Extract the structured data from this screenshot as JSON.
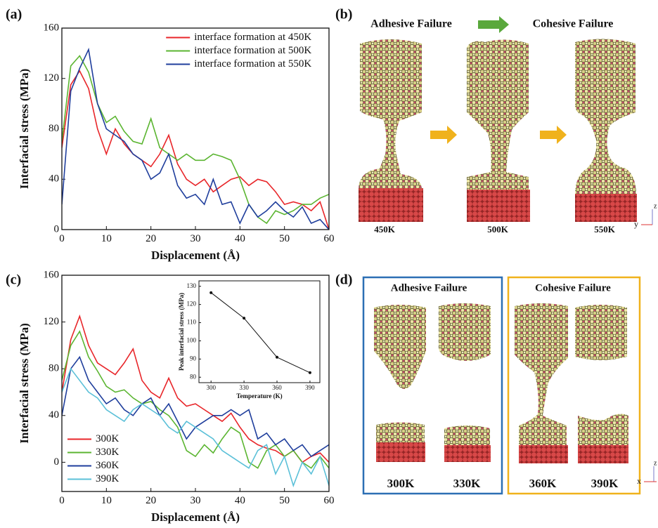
{
  "chart_data": [
    {
      "type": "line",
      "label": "(a)",
      "xlabel": "Displacement (Å)",
      "ylabel": "Interfacial stress (MPa)",
      "x": [
        0,
        2,
        4,
        6,
        8,
        10,
        12,
        14,
        16,
        18,
        20,
        22,
        24,
        26,
        28,
        30,
        32,
        34,
        36,
        38,
        40,
        42,
        44,
        46,
        48,
        50,
        52,
        54,
        56,
        58,
        60
      ],
      "xlim": [
        0,
        60
      ],
      "xticks": [
        0,
        10,
        20,
        30,
        40,
        50,
        60
      ],
      "ylim": [
        0,
        160
      ],
      "yticks": [
        0,
        40,
        80,
        120,
        160
      ],
      "legend": "upper right",
      "series": [
        {
          "name": "interface formation at 450K",
          "color": "#e8262a",
          "values": [
            65,
            115,
            126,
            112,
            80,
            60,
            80,
            68,
            60,
            55,
            50,
            60,
            75,
            52,
            40,
            35,
            40,
            30,
            35,
            40,
            42,
            35,
            40,
            38,
            30,
            20,
            22,
            20,
            15,
            22,
            0
          ]
        },
        {
          "name": "interface formation at 500K",
          "color": "#5bb531",
          "values": [
            70,
            130,
            138,
            125,
            100,
            85,
            90,
            78,
            70,
            68,
            88,
            65,
            60,
            55,
            60,
            55,
            55,
            60,
            58,
            55,
            40,
            20,
            10,
            5,
            15,
            12,
            15,
            20,
            20,
            25,
            28
          ]
        },
        {
          "name": "interface formation at 550K",
          "color": "#1f3e9c",
          "values": [
            20,
            110,
            128,
            143,
            100,
            80,
            75,
            70,
            60,
            55,
            40,
            45,
            60,
            35,
            25,
            28,
            20,
            40,
            20,
            22,
            5,
            20,
            10,
            15,
            22,
            15,
            10,
            18,
            5,
            8,
            0
          ]
        }
      ]
    },
    {
      "type": "line",
      "label": "(c)",
      "xlabel": "Displacement (Å)",
      "ylabel": "Interfacial stress (MPa)",
      "x": [
        0,
        2,
        4,
        6,
        8,
        10,
        12,
        14,
        16,
        18,
        20,
        22,
        24,
        26,
        28,
        30,
        32,
        34,
        36,
        38,
        40,
        42,
        44,
        46,
        48,
        50,
        52,
        54,
        56,
        58,
        60
      ],
      "xlim": [
        0,
        60
      ],
      "xticks": [
        0,
        10,
        20,
        30,
        40,
        50,
        60
      ],
      "ylim": [
        -25,
        160
      ],
      "yticks": [
        0,
        40,
        80,
        120,
        160
      ],
      "legend": "lower left",
      "series": [
        {
          "name": "300K",
          "color": "#e8262a",
          "values": [
            60,
            105,
            125,
            100,
            85,
            80,
            75,
            85,
            97,
            70,
            60,
            55,
            72,
            55,
            48,
            50,
            45,
            40,
            35,
            42,
            30,
            20,
            15,
            12,
            10,
            5,
            10,
            0,
            5,
            8,
            0
          ]
        },
        {
          "name": "330K",
          "color": "#5bb531",
          "values": [
            70,
            100,
            112,
            90,
            78,
            65,
            60,
            62,
            55,
            50,
            52,
            45,
            40,
            30,
            10,
            5,
            15,
            8,
            20,
            30,
            25,
            0,
            -5,
            10,
            15,
            5,
            10,
            0,
            -5,
            5,
            -5
          ]
        },
        {
          "name": "360K",
          "color": "#1f3e9c",
          "values": [
            40,
            80,
            90,
            70,
            60,
            50,
            55,
            45,
            40,
            50,
            55,
            40,
            50,
            35,
            20,
            30,
            35,
            40,
            40,
            45,
            40,
            45,
            20,
            25,
            15,
            20,
            10,
            15,
            5,
            10,
            15
          ]
        },
        {
          "name": "390K",
          "color": "#5bc0d8",
          "values": [
            60,
            80,
            70,
            60,
            55,
            45,
            40,
            35,
            45,
            50,
            45,
            40,
            30,
            25,
            35,
            30,
            25,
            20,
            10,
            5,
            0,
            -5,
            10,
            15,
            -10,
            5,
            -20,
            0,
            -10,
            5,
            -20
          ]
        }
      ]
    },
    {
      "type": "line",
      "xlabel": "Temperature (K)",
      "ylabel": "Peak interfacial stress (MPa)",
      "markers": true,
      "x": [
        300,
        330,
        360,
        390
      ],
      "xlim": [
        289,
        399
      ],
      "xticks": [
        300,
        330,
        360,
        390
      ],
      "ylim": [
        77,
        133
      ],
      "yticks": [
        80,
        90,
        100,
        110,
        120,
        130
      ],
      "color": "#111111",
      "values": [
        126.5,
        112.5,
        91,
        82.5
      ]
    }
  ],
  "panel_b": {
    "label": "(b)",
    "titles": [
      "Adhesive Failure",
      "Cohesive Failure"
    ],
    "temperatures": [
      "450K",
      "500K",
      "550K"
    ],
    "axes": [
      "z",
      "y"
    ]
  },
  "panel_d": {
    "label": "(d)",
    "titles": [
      "Adhesive Failure",
      "Cohesive Failure"
    ],
    "temperatures": [
      "300K",
      "330K",
      "360K",
      "390K"
    ],
    "axes": [
      "z",
      "x"
    ]
  }
}
